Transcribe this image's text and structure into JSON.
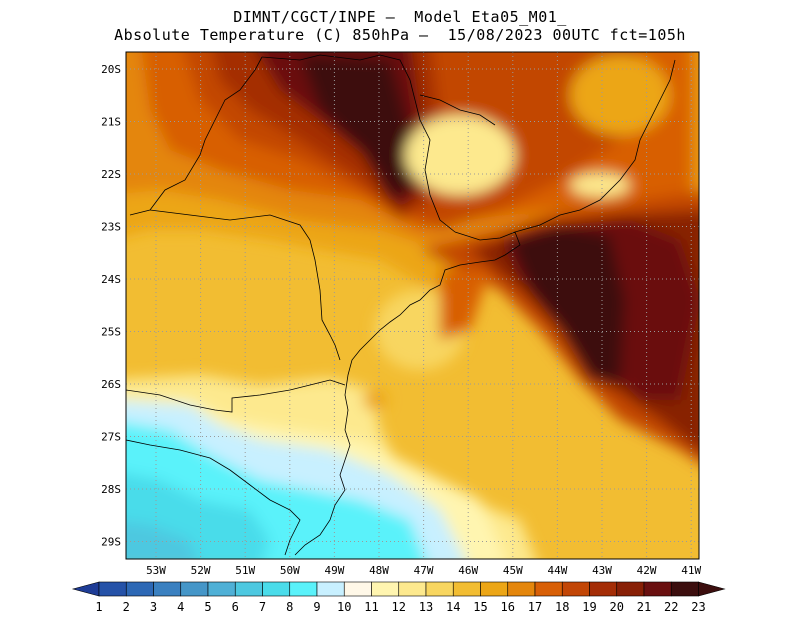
{
  "header": {
    "line1": "DIMNT/CGCT/INPE —  Model Eta05_M01_",
    "line2": "Absolute Temperature (C) 850hPa —  15/08/2023 00UTC fct=105h"
  },
  "map": {
    "lat_labels": [
      "20S",
      "21S",
      "22S",
      "23S",
      "24S",
      "25S",
      "26S",
      "27S",
      "28S",
      "29S"
    ],
    "lon_labels": [
      "53W",
      "52W",
      "51W",
      "50W",
      "49W",
      "48W",
      "47W",
      "46W",
      "45W",
      "44W",
      "43W",
      "42W",
      "41W"
    ],
    "grid": true,
    "grid_style": "dotted"
  },
  "colorbar": {
    "labels": [
      "1",
      "2",
      "3",
      "4",
      "5",
      "6",
      "7",
      "8",
      "9",
      "10",
      "11",
      "12",
      "13",
      "14",
      "15",
      "16",
      "17",
      "18",
      "19",
      "20",
      "21",
      "22",
      "23"
    ],
    "colors": [
      "#1e3c96",
      "#2552a8",
      "#2d68b5",
      "#3a80c0",
      "#4596c8",
      "#4fb0d6",
      "#4dc8e0",
      "#4adcea",
      "#5af2fa",
      "#c8f0ff",
      "#fff8e8",
      "#fff5b0",
      "#fde98e",
      "#f8d660",
      "#f2bd32",
      "#eca616",
      "#e4860c",
      "#d85f06",
      "#c24606",
      "#a42d06",
      "#882006",
      "#6a1010",
      "#3c0e0e"
    ]
  }
}
